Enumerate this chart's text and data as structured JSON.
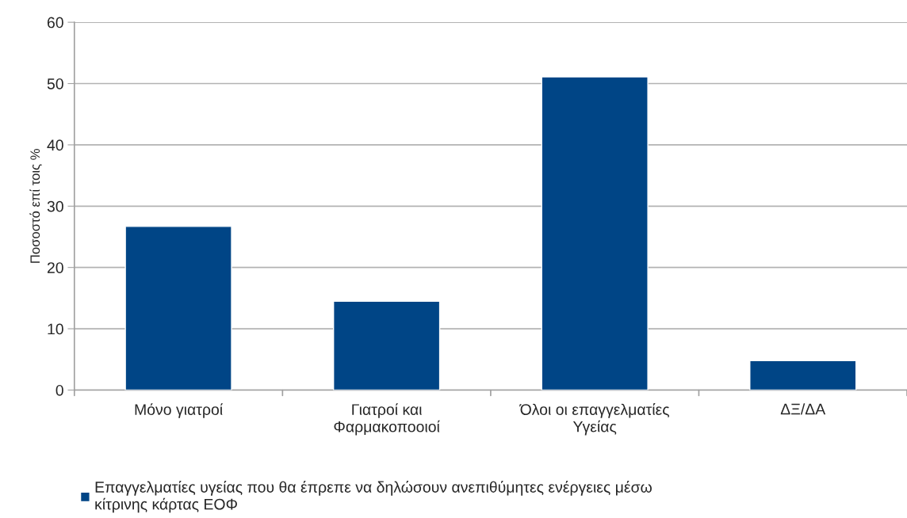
{
  "chart_data": {
    "type": "bar",
    "ylabel": "Ποσοστό επί τοις %",
    "categories": [
      "Μόνο γιατροί",
      "Γιατροί και\nΦαρμακοποοιοί",
      "Όλοι οι επαγγελματίες\nΥγείας",
      "ΔΞ/ΔΑ"
    ],
    "series": [
      {
        "name": "Επαγγελματίες υγείας που θα έπρεπε να δηλώσουν ανεπιθύμητες ενέργειες μέσω\nκίτρινης κάρτας ΕΟΦ",
        "color": "#004586",
        "values": [
          26.7,
          14.5,
          51.1,
          4.8
        ]
      }
    ],
    "ylim": [
      0,
      60
    ],
    "yticks": [
      0,
      10,
      20,
      30,
      40,
      50,
      60
    ],
    "grid": "y",
    "legend": "bottom"
  }
}
